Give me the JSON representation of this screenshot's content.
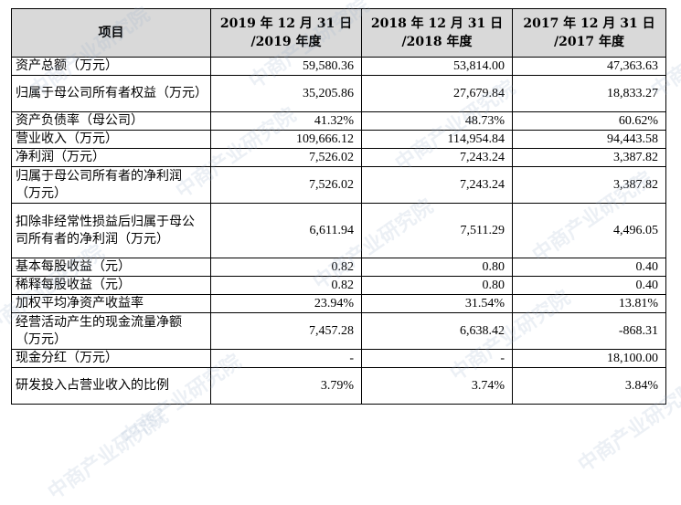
{
  "header": {
    "item": "项目",
    "col1_line1": "2019 年 12 月 31 日",
    "col1_line2": "/2019 年度",
    "col2_line1": "2018 年 12 月 31 日",
    "col2_line2": "/2018 年度",
    "col3_line1": "2017 年 12 月 31 日",
    "col3_line2": "/2017 年度"
  },
  "rows": [
    {
      "label": "资产总额（万元）",
      "v2019": "59,580.36",
      "v2018": "53,814.00",
      "v2017": "47,363.63"
    },
    {
      "label": "归属于母公司所有者权益（万元）",
      "v2019": "35,205.86",
      "v2018": "27,679.84",
      "v2017": "18,833.27"
    },
    {
      "label": "资产负债率（母公司）",
      "v2019": "41.32%",
      "v2018": "48.73%",
      "v2017": "60.62%"
    },
    {
      "label": "营业收入（万元）",
      "v2019": "109,666.12",
      "v2018": "114,954.84",
      "v2017": "94,443.58"
    },
    {
      "label": "净利润（万元）",
      "v2019": "7,526.02",
      "v2018": "7,243.24",
      "v2017": "3,387.82"
    },
    {
      "label": "归属于母公司所有者的净利润（万元）",
      "v2019": "7,526.02",
      "v2018": "7,243.24",
      "v2017": "3,387.82"
    },
    {
      "label": "扣除非经常性损益后归属于母公司所有者的净利润（万元）",
      "v2019": "6,611.94",
      "v2018": "7,511.29",
      "v2017": "4,496.05"
    },
    {
      "label": "基本每股收益（元）",
      "v2019": "0.82",
      "v2018": "0.80",
      "v2017": "0.40"
    },
    {
      "label": "稀释每股收益（元）",
      "v2019": "0.82",
      "v2018": "0.80",
      "v2017": "0.40"
    },
    {
      "label": "加权平均净资产收益率",
      "v2019": "23.94%",
      "v2018": "31.54%",
      "v2017": "13.81%"
    },
    {
      "label": "经营活动产生的现金流量净额（万元）",
      "v2019": "7,457.28",
      "v2018": "6,638.42",
      "v2017": "-868.31"
    },
    {
      "label": "现金分红（万元）",
      "v2019": "-",
      "v2018": "-",
      "v2017": "18,100.00"
    },
    {
      "label": "研发投入占营业收入的比例",
      "v2019": "3.79%",
      "v2018": "3.74%",
      "v2017": "3.84%"
    }
  ],
  "watermark": "中商产业研究院"
}
